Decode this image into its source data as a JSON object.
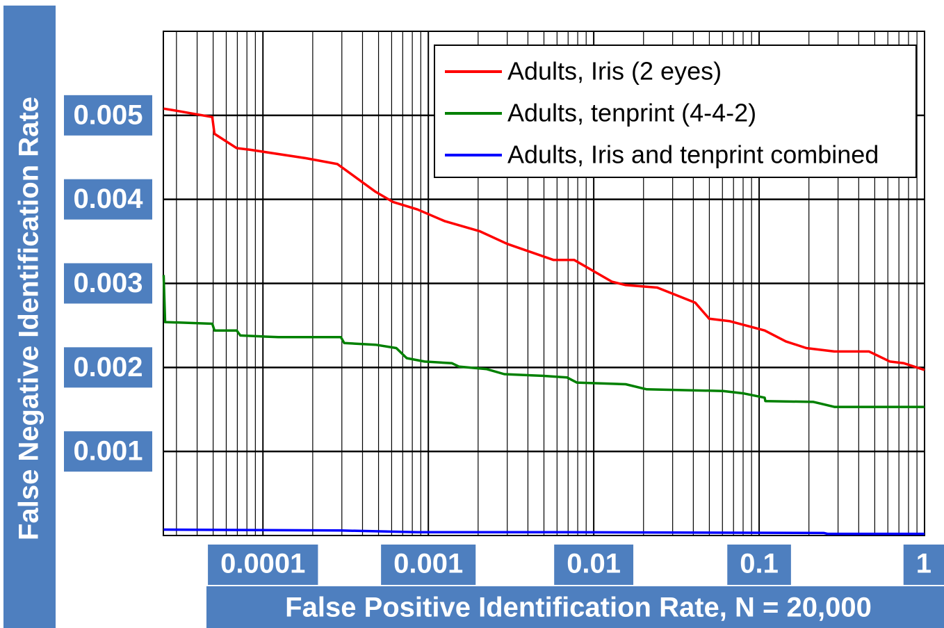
{
  "chart_data": {
    "type": "line",
    "xlabel": "False Positive Identification Rate, N = 20,000",
    "ylabel": "False Negative Identification Rate",
    "xscale": "log",
    "xlim": [
      2.5e-05,
      1
    ],
    "xticks": [
      0.0001,
      0.001,
      0.01,
      0.1,
      1
    ],
    "ylim": [
      0,
      0.006
    ],
    "yticks": [
      0.001,
      0.002,
      0.003,
      0.004,
      0.005
    ],
    "grid": true,
    "legend": "upper right",
    "series": [
      {
        "name": "Adults, Iris (2 eyes)",
        "color": "#ff0000",
        "x": [
          2.51e-05,
          2.9e-05,
          4.94e-05,
          5.09e-05,
          6.94e-05,
          8.4e-05,
          0.000182,
          0.000282,
          0.00048,
          0.00061,
          0.00086,
          0.00126,
          0.00205,
          0.003,
          0.0057,
          0.0076,
          0.0129,
          0.0156,
          0.0242,
          0.0411,
          0.0499,
          0.0667,
          0.108,
          0.145,
          0.193,
          0.285,
          0.462,
          0.618,
          0.75,
          1
        ],
        "values": [
          0.00508,
          0.00506,
          0.00498,
          0.00478,
          0.00461,
          0.00459,
          0.00449,
          0.00442,
          0.00409,
          0.00397,
          0.00388,
          0.00374,
          0.00362,
          0.00347,
          0.00328,
          0.00328,
          0.00302,
          0.00298,
          0.00295,
          0.00277,
          0.00258,
          0.00255,
          0.00244,
          0.00231,
          0.00223,
          0.00219,
          0.00219,
          0.00207,
          0.00205,
          0.00197
        ]
      },
      {
        "name": "Adults, tenprint (4-4-2)",
        "color": "#008000",
        "x": [
          2.51e-05,
          2.56e-05,
          4.94e-05,
          5.09e-05,
          6.94e-05,
          7.3e-05,
          0.000124,
          0.000296,
          0.00031,
          0.00048,
          0.00064,
          0.00074,
          0.00095,
          0.00139,
          0.00153,
          0.00226,
          0.00288,
          0.0049,
          0.0069,
          0.0079,
          0.0156,
          0.0209,
          0.0605,
          0.081,
          0.108,
          0.109,
          0.213,
          0.235,
          0.285,
          1
        ],
        "values": [
          0.0031,
          0.00254,
          0.00252,
          0.00244,
          0.00244,
          0.00238,
          0.00236,
          0.00236,
          0.00229,
          0.00227,
          0.00223,
          0.00211,
          0.00207,
          0.00205,
          0.00201,
          0.00198,
          0.00192,
          0.0019,
          0.00188,
          0.00182,
          0.0018,
          0.00174,
          0.00172,
          0.00169,
          0.00164,
          0.0016,
          0.00159,
          0.00157,
          0.00153,
          0.00153
        ]
      },
      {
        "name": "Adults, Iris and tenprint combined",
        "color": "#0000ff",
        "x": [
          2.51e-05,
          0.000296,
          0.00086,
          0.0069,
          0.247,
          0.259,
          1
        ],
        "values": [
          7e-05,
          6e-05,
          4e-05,
          4e-05,
          3e-05,
          2e-05,
          2e-05
        ]
      }
    ]
  }
}
